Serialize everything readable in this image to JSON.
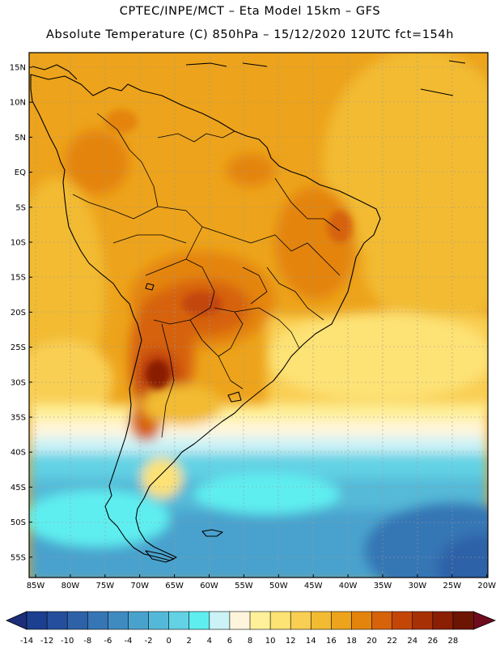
{
  "header": {
    "line1": "CPTEC/INPE/MCT –  Eta Model 15km – GFS",
    "line2": "Absolute Temperature (C) 850hPa – 15/12/2020 12UTC fct=154h"
  },
  "map": {
    "lat_labels": [
      "15N",
      "10N",
      "5N",
      "EQ",
      "5S",
      "10S",
      "15S",
      "20S",
      "25S",
      "30S",
      "35S",
      "40S",
      "45S",
      "50S",
      "55S"
    ],
    "lon_labels": [
      "85W",
      "80W",
      "75W",
      "70W",
      "65W",
      "60W",
      "55W",
      "50W",
      "45W",
      "40W",
      "35W",
      "30W",
      "25W",
      "20W"
    ],
    "colors": {
      "land_outline": "#000000",
      "grid": "#9a9a9a"
    }
  },
  "colorbar": {
    "labels": [
      "-14",
      "-12",
      "-10",
      "-8",
      "-6",
      "-4",
      "-2",
      "0",
      "2",
      "4",
      "6",
      "8",
      "10",
      "12",
      "14",
      "16",
      "18",
      "20",
      "22",
      "24",
      "26",
      "28"
    ],
    "colors": [
      "#1c3f8f",
      "#254f9c",
      "#2e62a8",
      "#3676b5",
      "#3f8bc1",
      "#49a2cd",
      "#54b9d8",
      "#62d2e4",
      "#5feef0",
      "#caf2f7",
      "#fff5dc",
      "#fef19a",
      "#fde274",
      "#f9cf53",
      "#f2bb32",
      "#eda31b",
      "#e4840d",
      "#d6620a",
      "#c34608",
      "#a83005",
      "#8a1f03",
      "#6c1502"
    ],
    "end_low_color": "#1c2d7a",
    "end_high_color": "#6e0b1e"
  }
}
